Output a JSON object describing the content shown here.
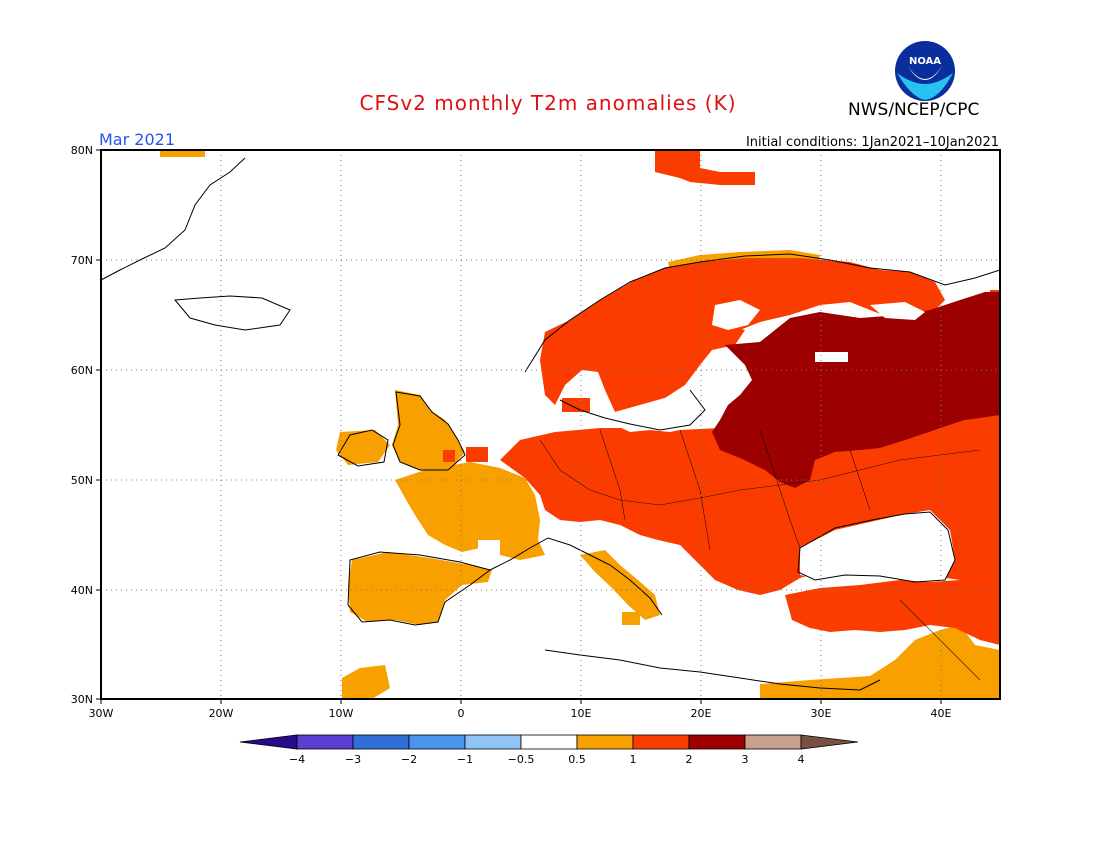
{
  "title": "CFSv2 monthly T2m anomalies (K)",
  "agency": "NWS/NCEP/CPC",
  "logo_text": "NOAA",
  "month": "Mar 2021",
  "init": "Initial conditions: 1Jan2021–10Jan2021",
  "colors": {
    "title": "#dd1111",
    "month": "#2255ee",
    "lt_m4": "#2a0a8c",
    "m4_m3": "#5a3fd1",
    "m3_m2": "#2f6fd6",
    "m2_m1": "#4a95ec",
    "m1_m05": "#8ec5f4",
    "neutral": "#ffffff",
    "a05_1": "#f8a000",
    "a1_2": "#fb3c00",
    "a2_3": "#9c0000",
    "a3_4": "#c9a08e",
    "gt_4": "#7a5040"
  },
  "map": {
    "lon_range": [
      -30,
      45
    ],
    "lat_range": [
      30,
      80
    ],
    "lon_ticks": [
      "30W",
      "20W",
      "10W",
      "0",
      "10E",
      "20E",
      "30E",
      "40E"
    ],
    "lat_ticks": [
      "30N",
      "40N",
      "50N",
      "60N",
      "70N",
      "80N"
    ],
    "gridlines": true
  },
  "colorbar": {
    "labels": [
      "−4",
      "−3",
      "−2",
      "−1",
      "−0.5",
      "0.5",
      "1",
      "2",
      "3",
      "4"
    ]
  }
}
